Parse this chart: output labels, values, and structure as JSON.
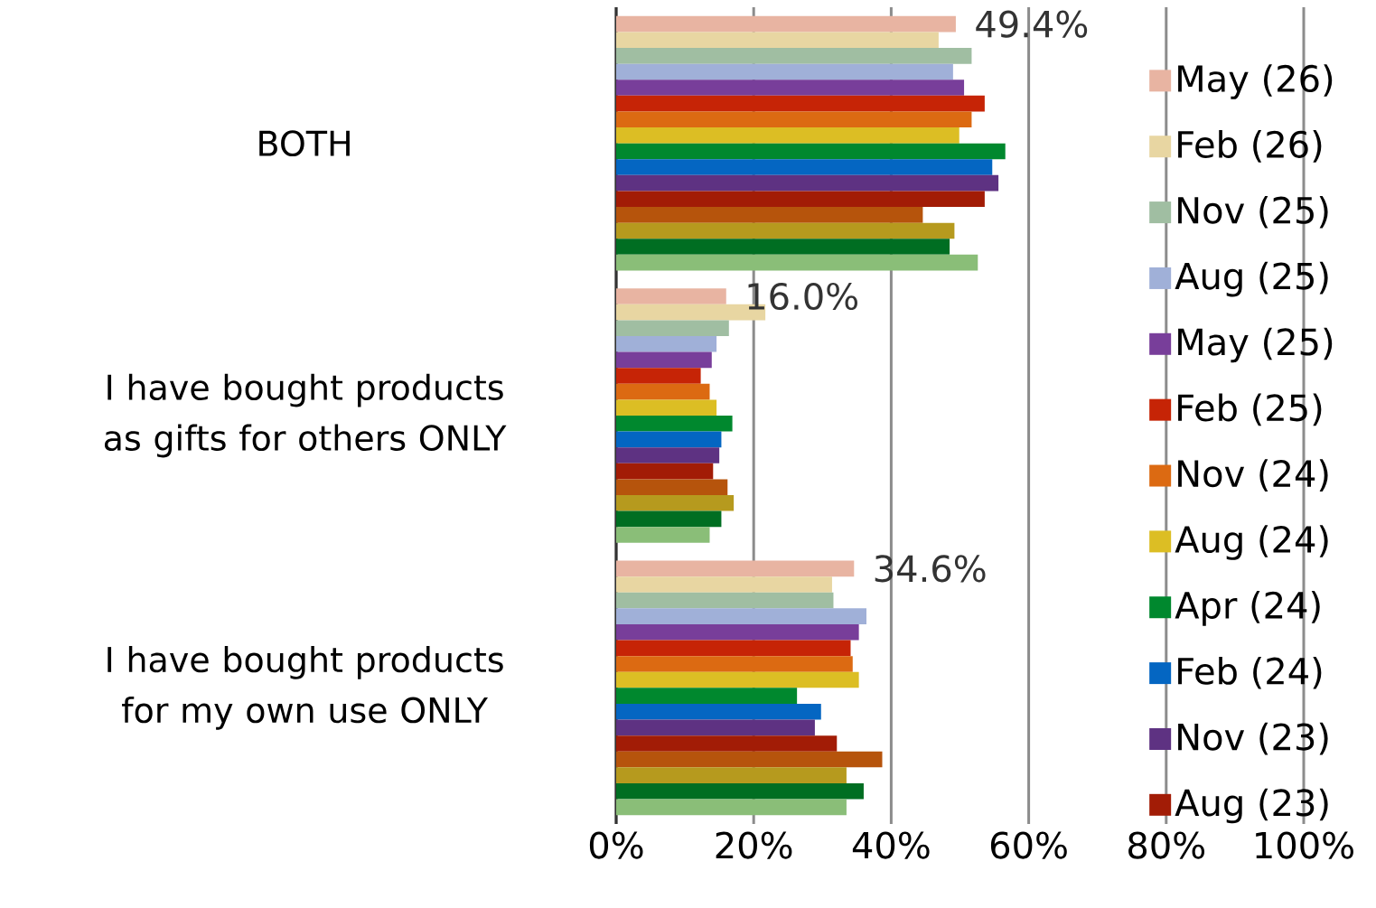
{
  "chart_data": {
    "type": "bar",
    "orientation": "horizontal",
    "categories": [
      "BOTH",
      "I have bought products as gifts for others ONLY",
      "I have bought products for my own use ONLY"
    ],
    "xlim": [
      0,
      100
    ],
    "xticks": [
      {
        "value": 0,
        "label": "0%"
      },
      {
        "value": 20,
        "label": "20%"
      },
      {
        "value": 40,
        "label": "40%"
      },
      {
        "value": 60,
        "label": "60%"
      },
      {
        "value": 80,
        "label": "80%"
      },
      {
        "value": 100,
        "label": "100%"
      }
    ],
    "grid": "x",
    "legend": "right",
    "series": [
      {
        "name": "May (26)",
        "color": "#e8b4a2",
        "values": [
          49.4,
          16.0,
          34.6
        ],
        "value_labels": [
          "49.4%",
          "16.0%",
          "34.6%"
        ]
      },
      {
        "name": "Feb (26)",
        "color": "#e8d6a2",
        "values": [
          46.9,
          21.7,
          31.4
        ]
      },
      {
        "name": "Nov (25)",
        "color": "#a0bea2",
        "values": [
          51.7,
          16.4,
          31.6
        ]
      },
      {
        "name": "Aug (25)",
        "color": "#a0b0d8",
        "values": [
          49.0,
          14.6,
          36.4
        ]
      },
      {
        "name": "May (25)",
        "color": "#783e9a",
        "values": [
          50.6,
          13.9,
          35.3
        ]
      },
      {
        "name": "Feb (25)",
        "color": "#c62406",
        "values": [
          53.6,
          12.3,
          34.1
        ]
      },
      {
        "name": "Nov (24)",
        "color": "#dc6a12",
        "values": [
          51.7,
          13.6,
          34.4
        ]
      },
      {
        "name": "Aug (24)",
        "color": "#dcbe24",
        "values": [
          49.9,
          14.6,
          35.3
        ]
      },
      {
        "name": "Apr (24)",
        "color": "#00882e",
        "values": [
          56.6,
          16.9,
          26.3
        ]
      },
      {
        "name": "Feb (24)",
        "color": "#0466c2",
        "values": [
          54.7,
          15.3,
          29.8
        ]
      },
      {
        "name": "Nov (23)",
        "color": "#5e3282",
        "values": [
          55.6,
          15.0,
          28.9
        ]
      },
      {
        "name": "Aug (23)",
        "color": "#a21c06",
        "values": [
          53.6,
          14.1,
          32.1
        ]
      },
      {
        "color": "#b6540c",
        "values": [
          44.6,
          16.2,
          38.7
        ]
      },
      {
        "color": "#b69a1e",
        "values": [
          49.2,
          17.1,
          33.5
        ]
      },
      {
        "color": "#006e22",
        "values": [
          48.5,
          15.3,
          36.0
        ]
      },
      {
        "color": "#8abe78",
        "values": [
          52.6,
          13.6,
          33.5
        ]
      }
    ]
  }
}
